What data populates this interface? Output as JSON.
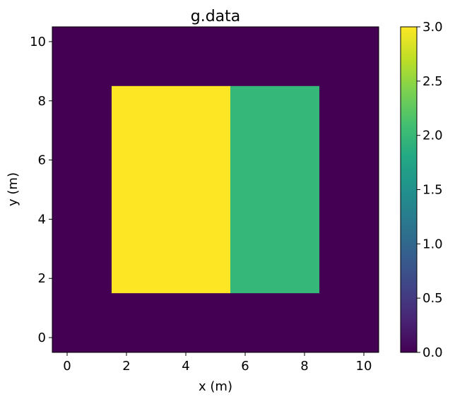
{
  "chart_data": {
    "type": "heatmap",
    "title": "g.data",
    "xlabel": "x (m)",
    "ylabel": "y (m)",
    "xlim": [
      -0.5,
      10.5
    ],
    "ylim": [
      -0.5,
      10.5
    ],
    "xticks": [
      0,
      2,
      4,
      6,
      8,
      10
    ],
    "yticks": [
      0,
      2,
      4,
      6,
      8,
      10
    ],
    "grid": false,
    "colormap": "viridis",
    "clim": [
      0.0,
      3.0
    ],
    "colorbar_ticks": [
      "0.0",
      "0.5",
      "1.0",
      "1.5",
      "2.0",
      "2.5",
      "3.0"
    ],
    "cell_size": 1,
    "nx": 11,
    "ny": 11,
    "background_value": 0,
    "regions": [
      {
        "x_cells": [
          2,
          5
        ],
        "y_cells": [
          2,
          8
        ],
        "value": 3
      },
      {
        "x_cells": [
          6,
          8
        ],
        "y_cells": [
          2,
          8
        ],
        "value": 2
      }
    ],
    "colors": {
      "0": "#440154",
      "2": "#35b779",
      "3": "#fde725"
    }
  }
}
